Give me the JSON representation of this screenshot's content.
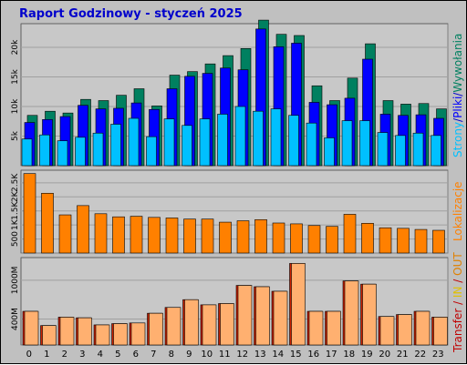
{
  "title": "Raport Godzinowy -  styczeń 2025",
  "colors": {
    "background": "#c0c0c0",
    "plot_background": "#c8c8c8",
    "grid": "#a0a0a0",
    "title": "#0000cc",
    "strony": "#00c0ff",
    "pliki": "#0000ff",
    "wywolania": "#008060",
    "lokalizacje": "#ff8000",
    "transfer_in": "#ffb070",
    "transfer_out": "#e08000",
    "transfer_label": "#c00000",
    "in_label": "#e0c000",
    "out_label": "#e08000"
  },
  "side_labels": {
    "panel1": {
      "strony": "Strony",
      "sep1": "/",
      "pliki": "Pliki",
      "sep2": "/",
      "wywolania": "Wywołania"
    },
    "panel2": {
      "lokalizacje": "Lokalizacje"
    },
    "panel3": {
      "transfer": "Transfer",
      "sep1": " / ",
      "in": "IN",
      "sep2": " / ",
      "out": "OUT"
    }
  },
  "chart_data": [
    {
      "type": "bar",
      "title": "Raport Godzinowy -  styczeń 2025",
      "categories": [
        "0",
        "1",
        "2",
        "3",
        "4",
        "5",
        "6",
        "7",
        "8",
        "9",
        "10",
        "11",
        "12",
        "13",
        "14",
        "15",
        "16",
        "17",
        "18",
        "19",
        "20",
        "21",
        "22",
        "23"
      ],
      "ylim": [
        0,
        24000
      ],
      "yticks": [
        5000,
        10000,
        15000,
        20000
      ],
      "ytick_labels": [
        "5k",
        "10k",
        "15k",
        "20k"
      ],
      "grid": true,
      "series": [
        {
          "name": "Wywołania",
          "values": [
            8500,
            9200,
            8900,
            11200,
            11000,
            11900,
            13000,
            10100,
            15300,
            15900,
            17200,
            18600,
            19800,
            24600,
            22200,
            22000,
            13500,
            11000,
            14800,
            20600,
            11000,
            10400,
            10500,
            9600
          ]
        },
        {
          "name": "Pliki",
          "values": [
            7300,
            7800,
            8300,
            10200,
            9600,
            9700,
            10600,
            9500,
            13000,
            15100,
            15600,
            16500,
            16200,
            23100,
            20100,
            20700,
            10700,
            10300,
            11400,
            18000,
            8700,
            8500,
            8600,
            8000
          ]
        },
        {
          "name": "Strony",
          "values": [
            4500,
            5200,
            4200,
            4800,
            5500,
            7000,
            8000,
            4900,
            7900,
            6800,
            7900,
            8700,
            10000,
            9200,
            9600,
            8500,
            7200,
            4700,
            7600,
            7600,
            5600,
            5100,
            5500,
            5100
          ]
        }
      ]
    },
    {
      "type": "bar",
      "categories": [
        "0",
        "1",
        "2",
        "3",
        "4",
        "5",
        "6",
        "7",
        "8",
        "9",
        "10",
        "11",
        "12",
        "13",
        "14",
        "15",
        "16",
        "17",
        "18",
        "19",
        "20",
        "21",
        "22",
        "23"
      ],
      "ylim": [
        0,
        2950
      ],
      "yticks": [
        500,
        1000,
        1500,
        2000,
        2500
      ],
      "ytick_labels": [
        "500",
        "1K",
        "1.5K",
        "2K",
        "2.5K"
      ],
      "grid": true,
      "series": [
        {
          "name": "Lokalizacje",
          "values": [
            2830,
            2130,
            1360,
            1690,
            1400,
            1290,
            1310,
            1270,
            1250,
            1210,
            1210,
            1100,
            1150,
            1190,
            1070,
            1040,
            980,
            950,
            1380,
            1060,
            900,
            880,
            840,
            810
          ]
        }
      ]
    },
    {
      "type": "bar",
      "categories": [
        "0",
        "1",
        "2",
        "3",
        "4",
        "5",
        "6",
        "7",
        "8",
        "9",
        "10",
        "11",
        "12",
        "13",
        "14",
        "15",
        "16",
        "17",
        "18",
        "19",
        "20",
        "21",
        "22",
        "23"
      ],
      "ylim": [
        0,
        1350
      ],
      "yticks": [
        400,
        1000
      ],
      "ytick_labels": [
        "400M",
        "1000M"
      ],
      "grid": true,
      "series": [
        {
          "name": "IN",
          "values": [
            520,
            300,
            430,
            420,
            310,
            330,
            340,
            490,
            580,
            700,
            620,
            640,
            920,
            900,
            830,
            1260,
            520,
            520,
            990,
            940,
            440,
            470,
            520,
            430
          ]
        },
        {
          "name": "OUT",
          "values": [
            520,
            300,
            430,
            420,
            310,
            330,
            340,
            490,
            580,
            700,
            620,
            640,
            920,
            900,
            830,
            1260,
            520,
            520,
            990,
            940,
            440,
            470,
            520,
            430
          ]
        }
      ]
    }
  ]
}
